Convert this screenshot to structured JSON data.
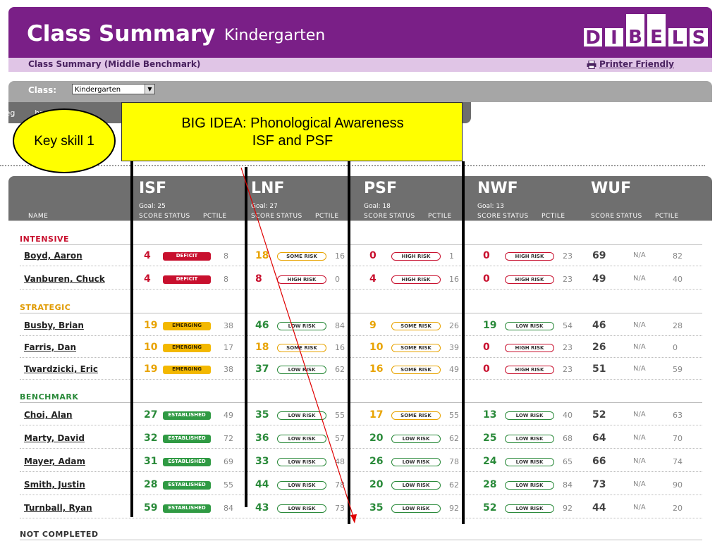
{
  "header": {
    "title": "Class Summary",
    "subtitle": "Kindergarten",
    "logo_letters": [
      "D",
      "I",
      "B",
      "E",
      "L",
      "S"
    ],
    "sub_title": "Class Summary (Middle Benchmark)",
    "printer_link": "Printer Friendly"
  },
  "class_bar": {
    "label": "Class:",
    "selected": "Kindergarten",
    "benchmark_partial": "Beg        hmar"
  },
  "callouts": {
    "big_idea_line1": "BIG IDEA: Phonological Awareness",
    "big_idea_line2": "ISF and PSF",
    "key_skill": "Key skill 1"
  },
  "measures": [
    {
      "name": "ISF",
      "goal": "Goal: 25"
    },
    {
      "name": "LNF",
      "goal": "Goal: 27"
    },
    {
      "name": "PSF",
      "goal": "Goal: 18"
    },
    {
      "name": "NWF",
      "goal": "Goal: 13"
    },
    {
      "name": "WUF",
      "goal": ""
    }
  ],
  "columns": {
    "name": "NAME",
    "score": "SCORE",
    "status": "STATUS",
    "pctile": "PCTILE"
  },
  "colors": {
    "purple": "#7a1f87",
    "intensive": "#c8102e",
    "strategic": "#e09a00",
    "benchmark": "#2a8a3a"
  },
  "groups": {
    "intensive": "INTENSIVE",
    "strategic": "STRATEGIC",
    "benchmark": "BENCHMARK",
    "not_completed": "NOT COMPLETED"
  },
  "rows": [
    {
      "name": "Boyd, Aaron",
      "cells": [
        {
          "score": "4",
          "status": "DEFICIT",
          "pctile": "8",
          "lvl": "red"
        },
        {
          "score": "18",
          "status": "SOME RISK",
          "pctile": "16",
          "lvl": "yellow"
        },
        {
          "score": "0",
          "status": "HIGH RISK",
          "pctile": "1",
          "lvl": "red"
        },
        {
          "score": "0",
          "status": "HIGH RISK",
          "pctile": "23",
          "lvl": "red"
        },
        {
          "score": "69",
          "status": "N/A",
          "pctile": "82",
          "lvl": "na"
        }
      ]
    },
    {
      "name": "Vanburen, Chuck",
      "cells": [
        {
          "score": "4",
          "status": "DEFICIT",
          "pctile": "8",
          "lvl": "red"
        },
        {
          "score": "8",
          "status": "HIGH RISK",
          "pctile": "0",
          "lvl": "red"
        },
        {
          "score": "4",
          "status": "HIGH RISK",
          "pctile": "16",
          "lvl": "red"
        },
        {
          "score": "0",
          "status": "HIGH RISK",
          "pctile": "23",
          "lvl": "red"
        },
        {
          "score": "49",
          "status": "N/A",
          "pctile": "40",
          "lvl": "na"
        }
      ]
    },
    {
      "name": "Busby, Brian",
      "cells": [
        {
          "score": "19",
          "status": "EMERGING",
          "pctile": "38",
          "lvl": "yellow"
        },
        {
          "score": "46",
          "status": "LOW RISK",
          "pctile": "84",
          "lvl": "green"
        },
        {
          "score": "9",
          "status": "SOME RISK",
          "pctile": "26",
          "lvl": "yellow"
        },
        {
          "score": "19",
          "status": "LOW RISK",
          "pctile": "54",
          "lvl": "green"
        },
        {
          "score": "46",
          "status": "N/A",
          "pctile": "28",
          "lvl": "na"
        }
      ]
    },
    {
      "name": "Farris, Dan",
      "cells": [
        {
          "score": "10",
          "status": "EMERGING",
          "pctile": "17",
          "lvl": "yellow"
        },
        {
          "score": "18",
          "status": "SOME RISK",
          "pctile": "16",
          "lvl": "yellow"
        },
        {
          "score": "10",
          "status": "SOME RISK",
          "pctile": "39",
          "lvl": "yellow"
        },
        {
          "score": "0",
          "status": "HIGH RISK",
          "pctile": "23",
          "lvl": "red"
        },
        {
          "score": "26",
          "status": "N/A",
          "pctile": "0",
          "lvl": "na"
        }
      ]
    },
    {
      "name": "Twardzicki, Eric",
      "cells": [
        {
          "score": "19",
          "status": "EMERGING",
          "pctile": "38",
          "lvl": "yellow"
        },
        {
          "score": "37",
          "status": "LOW RISK",
          "pctile": "62",
          "lvl": "green"
        },
        {
          "score": "16",
          "status": "SOME RISK",
          "pctile": "49",
          "lvl": "yellow"
        },
        {
          "score": "0",
          "status": "HIGH RISK",
          "pctile": "23",
          "lvl": "red"
        },
        {
          "score": "51",
          "status": "N/A",
          "pctile": "59",
          "lvl": "na"
        }
      ]
    },
    {
      "name": "Choi, Alan",
      "cells": [
        {
          "score": "27",
          "status": "ESTABLISHED",
          "pctile": "49",
          "lvl": "green"
        },
        {
          "score": "35",
          "status": "LOW RISK",
          "pctile": "55",
          "lvl": "green"
        },
        {
          "score": "17",
          "status": "SOME RISK",
          "pctile": "55",
          "lvl": "yellow"
        },
        {
          "score": "13",
          "status": "LOW RISK",
          "pctile": "40",
          "lvl": "green"
        },
        {
          "score": "52",
          "status": "N/A",
          "pctile": "63",
          "lvl": "na"
        }
      ]
    },
    {
      "name": "Marty, David",
      "cells": [
        {
          "score": "32",
          "status": "ESTABLISHED",
          "pctile": "72",
          "lvl": "green"
        },
        {
          "score": "36",
          "status": "LOW RISK",
          "pctile": "57",
          "lvl": "green"
        },
        {
          "score": "20",
          "status": "LOW RISK",
          "pctile": "62",
          "lvl": "green"
        },
        {
          "score": "25",
          "status": "LOW RISK",
          "pctile": "68",
          "lvl": "green"
        },
        {
          "score": "64",
          "status": "N/A",
          "pctile": "70",
          "lvl": "na"
        }
      ]
    },
    {
      "name": "Mayer, Adam",
      "cells": [
        {
          "score": "31",
          "status": "ESTABLISHED",
          "pctile": "69",
          "lvl": "green"
        },
        {
          "score": "33",
          "status": "LOW RISK",
          "pctile": "48",
          "lvl": "green"
        },
        {
          "score": "26",
          "status": "LOW RISK",
          "pctile": "78",
          "lvl": "green"
        },
        {
          "score": "24",
          "status": "LOW RISK",
          "pctile": "65",
          "lvl": "green"
        },
        {
          "score": "66",
          "status": "N/A",
          "pctile": "74",
          "lvl": "na"
        }
      ]
    },
    {
      "name": "Smith, Justin",
      "cells": [
        {
          "score": "28",
          "status": "ESTABLISHED",
          "pctile": "55",
          "lvl": "green"
        },
        {
          "score": "44",
          "status": "LOW RISK",
          "pctile": "78",
          "lvl": "green"
        },
        {
          "score": "20",
          "status": "LOW RISK",
          "pctile": "62",
          "lvl": "green"
        },
        {
          "score": "28",
          "status": "LOW RISK",
          "pctile": "84",
          "lvl": "green"
        },
        {
          "score": "73",
          "status": "N/A",
          "pctile": "90",
          "lvl": "na"
        }
      ]
    },
    {
      "name": "Turnball, Ryan",
      "cells": [
        {
          "score": "59",
          "status": "ESTABLISHED",
          "pctile": "84",
          "lvl": "green"
        },
        {
          "score": "43",
          "status": "LOW RISK",
          "pctile": "73",
          "lvl": "green"
        },
        {
          "score": "35",
          "status": "LOW RISK",
          "pctile": "92",
          "lvl": "green"
        },
        {
          "score": "52",
          "status": "LOW RISK",
          "pctile": "92",
          "lvl": "green"
        },
        {
          "score": "44",
          "status": "N/A",
          "pctile": "20",
          "lvl": "na"
        }
      ]
    }
  ]
}
